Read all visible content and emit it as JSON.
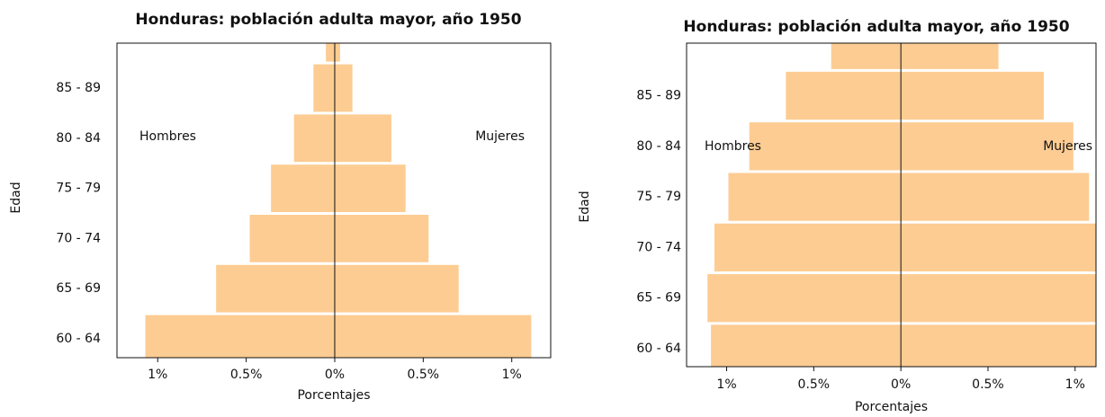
{
  "chart_data": [
    {
      "type": "bar",
      "orientation": "horizontal",
      "title": "Honduras: población adulta mayor, año 1950",
      "y_label": "Edad",
      "x_label": "Porcentajes",
      "categories": [
        "60 - 64",
        "65 - 69",
        "70 - 74",
        "75 - 79",
        "80 - 84",
        "85 - 89",
        null
      ],
      "series": [
        {
          "name": "Hombres",
          "color": "#fdcc92",
          "values": [
            -1.07,
            -0.67,
            -0.48,
            -0.36,
            -0.23,
            -0.12,
            -0.05
          ]
        },
        {
          "name": "Mujeres",
          "color": "#fdcc92",
          "values": [
            1.11,
            0.7,
            0.53,
            0.4,
            0.32,
            0.1,
            0.03
          ]
        }
      ],
      "xlim": [
        -1.23,
        1.22
      ],
      "xticks": [
        {
          "value": -1,
          "label": "1%"
        },
        {
          "value": -0.5,
          "label": "0.5%"
        },
        {
          "value": 0,
          "label": "0%"
        },
        {
          "value": 0.5,
          "label": "0.5%"
        },
        {
          "value": 1,
          "label": "1%"
        }
      ]
    },
    {
      "type": "bar",
      "orientation": "horizontal",
      "title": "Honduras: población adulta mayor, año 1950",
      "y_label": "Edad",
      "x_label": "Porcentajes",
      "categories": [
        "60 - 64",
        "65 - 69",
        "70 - 74",
        "75 - 79",
        "80 - 84",
        "85 - 89",
        null
      ],
      "series": [
        {
          "name": "Hombres",
          "color": "#fdcc92",
          "values": [
            -1.09,
            -1.11,
            -1.07,
            -0.99,
            -0.87,
            -0.66,
            -0.4
          ]
        },
        {
          "name": "Mujeres",
          "color": "#fdcc92",
          "values": [
            1.12,
            1.12,
            1.12,
            1.08,
            0.99,
            0.82,
            0.56
          ]
        }
      ],
      "xlim": [
        -1.23,
        1.12
      ],
      "xticks": [
        {
          "value": -1,
          "label": "1%"
        },
        {
          "value": -0.5,
          "label": "0.5%"
        },
        {
          "value": 0,
          "label": "0%"
        },
        {
          "value": 0.5,
          "label": "0.5%"
        },
        {
          "value": 1,
          "label": "1%"
        }
      ]
    }
  ]
}
